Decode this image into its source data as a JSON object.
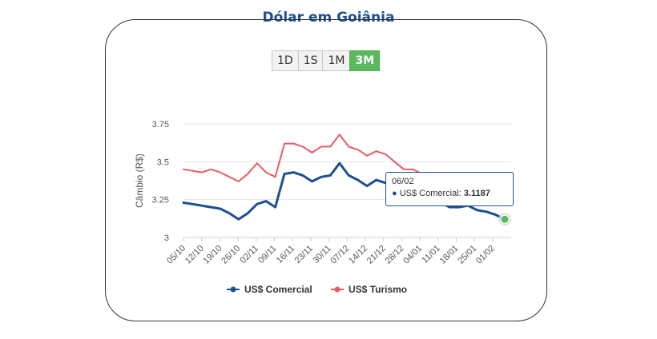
{
  "header": {
    "title": "Dólar em Goiânia"
  },
  "range_buttons": [
    {
      "label": "1D",
      "active": false
    },
    {
      "label": "1S",
      "active": false
    },
    {
      "label": "1M",
      "active": false
    },
    {
      "label": "3M",
      "active": true
    }
  ],
  "tooltip": {
    "date": "06/02",
    "series": "US$ Comercial",
    "value": "3.1187"
  },
  "colors": {
    "comercial": "#1d4f94",
    "turismo": "#e85b63",
    "highlight": "#5cb85c"
  },
  "chart_data": {
    "type": "line",
    "title": "",
    "xlabel": "",
    "ylabel": "Câmbio (R$)",
    "ylim": [
      3,
      3.75
    ],
    "yticks": [
      "3",
      "3.25",
      "3.5",
      "3.75"
    ],
    "xticks": [
      "05/10",
      "12/10",
      "19/10",
      "26/10",
      "02/11",
      "09/11",
      "16/11",
      "23/11",
      "30/11",
      "07/12",
      "14/12",
      "21/12",
      "28/12",
      "04/01",
      "11/01",
      "18/01",
      "25/01",
      "01/02"
    ],
    "legend_position": "bottom",
    "series": [
      {
        "name": "US$ Comercial",
        "values": [
          3.23,
          3.22,
          3.21,
          3.2,
          3.19,
          3.16,
          3.12,
          3.16,
          3.22,
          3.24,
          3.2,
          3.42,
          3.43,
          3.41,
          3.37,
          3.4,
          3.41,
          3.49,
          3.41,
          3.38,
          3.34,
          3.38,
          3.36,
          3.32,
          3.3,
          3.28,
          3.26,
          3.24,
          3.23,
          3.2,
          3.2,
          3.21,
          3.18,
          3.17,
          3.15,
          3.12
        ]
      },
      {
        "name": "US$ Turismo",
        "values": [
          3.45,
          3.44,
          3.43,
          3.45,
          3.43,
          3.4,
          3.37,
          3.42,
          3.49,
          3.43,
          3.4,
          3.62,
          3.62,
          3.6,
          3.56,
          3.6,
          3.6,
          3.68,
          3.6,
          3.58,
          3.54,
          3.57,
          3.55,
          3.5,
          3.45,
          3.45,
          3.42,
          3.42,
          3.41,
          3.4,
          3.39,
          3.4,
          3.38,
          3.36,
          3.33,
          3.32
        ]
      }
    ]
  }
}
